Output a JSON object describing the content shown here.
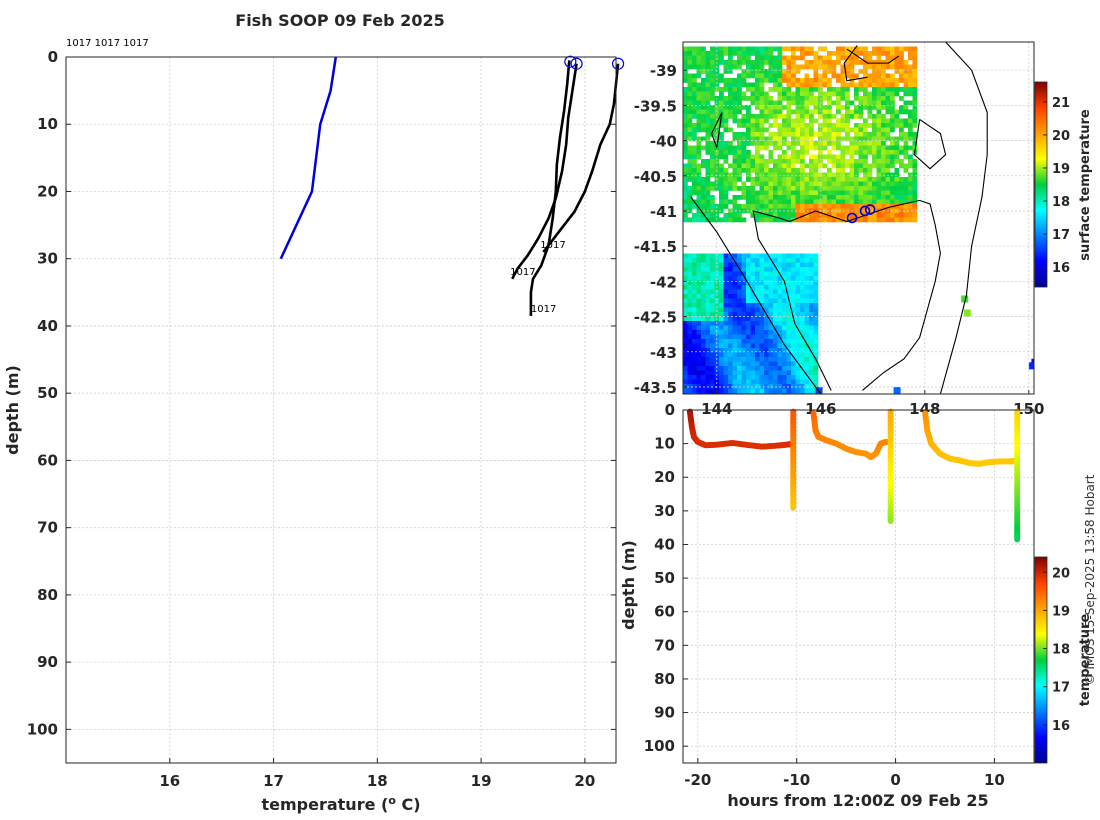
{
  "credit": "© IMOS 15-Sep-2025 13:58 Hobart",
  "chart_data": [
    {
      "type": "line",
      "name": "profile",
      "title": "Fish SOOP 09 Feb 2025",
      "xlabel": "temperature (° C)",
      "ylabel": "depth (m)",
      "xlim": [
        15,
        20.3
      ],
      "ylim": [
        0,
        105
      ],
      "xticks": [
        16,
        17,
        18,
        19,
        20
      ],
      "yticks": [
        0,
        10,
        20,
        30,
        40,
        50,
        60,
        70,
        80,
        90,
        100
      ],
      "top_labels": "1017 1017 1017",
      "climatology": {
        "color": "#0000dd",
        "x": [
          17.6,
          17.55,
          17.45,
          17.37,
          17.07
        ],
        "y": [
          0,
          5,
          10,
          20,
          30
        ]
      },
      "profiles": [
        {
          "label": "1017",
          "x": [
            19.85,
            19.83,
            19.8,
            19.76,
            19.73,
            19.72,
            19.69,
            19.65,
            19.58,
            19.5,
            19.48,
            19.48
          ],
          "y": [
            0.5,
            4,
            8,
            12,
            16,
            20,
            24,
            28,
            31,
            33,
            35,
            38.5
          ],
          "label_pos": [
            19.48,
            38.5
          ]
        },
        {
          "label": "1017",
          "x": [
            19.92,
            19.88,
            19.84,
            19.82,
            19.78,
            19.72,
            19.65,
            19.55,
            19.45,
            19.35,
            19.3
          ],
          "y": [
            1,
            5,
            9,
            13,
            17,
            21,
            24,
            27,
            29.5,
            31.5,
            33
          ],
          "label_pos": [
            19.28,
            33
          ]
        },
        {
          "label": "1017",
          "x": [
            20.32,
            20.3,
            20.28,
            20.24,
            20.15,
            20.07,
            20.0,
            19.9,
            19.8,
            19.7,
            19.6
          ],
          "y": [
            1,
            4,
            7,
            10,
            13,
            17,
            20,
            23,
            25,
            27,
            29
          ],
          "label_pos": [
            19.57,
            29
          ]
        }
      ],
      "markers": [
        {
          "x": 19.86,
          "y": 0.7
        },
        {
          "x": 19.92,
          "y": 1.0
        },
        {
          "x": 20.32,
          "y": 1.0
        }
      ]
    },
    {
      "type": "heatmap",
      "name": "map",
      "colorbar_label": "surface temperature",
      "colorbar_ticks": [
        16,
        17,
        18,
        19,
        20,
        21
      ],
      "colorbar_range": [
        15.4,
        21.6
      ],
      "x_ticks": [
        144,
        146,
        148,
        150
      ],
      "y_ticks": [
        -39,
        -39.5,
        -40,
        -40.5,
        -41,
        -41.5,
        -42,
        -42.5,
        -43,
        -43.5
      ],
      "lon_range": [
        143.35,
        150.1
      ],
      "lat_range": [
        -43.6,
        -38.6
      ],
      "stations": [
        {
          "lon": 146.6,
          "lat": -41.1
        },
        {
          "lon": 146.85,
          "lat": -41.0
        },
        {
          "lon": 146.95,
          "lat": -40.98
        }
      ]
    },
    {
      "type": "scatter",
      "name": "timeseries",
      "xlabel": "hours from 12:00Z 09 Feb 25",
      "ylabel": "depth (m)",
      "xlim": [
        -21.5,
        14
      ],
      "ylim": [
        0,
        105
      ],
      "xticks": [
        -20,
        -10,
        0,
        10
      ],
      "yticks": [
        0,
        10,
        20,
        30,
        40,
        50,
        60,
        70,
        80,
        90,
        100
      ],
      "colorbar_label": "temperature",
      "colorbar_ticks": [
        16,
        17,
        18,
        19,
        20
      ],
      "colorbar_range": [
        15.0,
        20.4
      ],
      "segments": [
        {
          "t": [
            -20.8,
            -20.6,
            -20.4,
            -20,
            -19.2,
            -18,
            -16.5,
            -15,
            -13.5,
            -12,
            -11,
            -10.5
          ],
          "d": [
            0.5,
            5,
            8,
            9.5,
            10.5,
            10.3,
            9.8,
            10.4,
            10.9,
            10.6,
            10.3,
            10.1
          ],
          "temp": 20.2
        },
        {
          "t": [
            -10.35,
            -10.35,
            -10.35,
            -10.35,
            -10.35,
            -10.35
          ],
          "d": [
            0.5,
            6,
            12,
            18,
            24,
            29
          ],
          "temp": 19.6
        },
        {
          "t": [
            -8.3,
            -8.1,
            -7.8,
            -7,
            -6,
            -5,
            -4,
            -3,
            -2.5,
            -2,
            -1.5,
            -1,
            -0.8
          ],
          "d": [
            1,
            6,
            8,
            9,
            10,
            11.5,
            12.5,
            13,
            14,
            13,
            10,
            9.5,
            9.5
          ],
          "temp": 19.5
        },
        {
          "t": [
            -0.5,
            -0.5,
            -0.5,
            -0.5,
            -0.5,
            -0.5,
            -0.5
          ],
          "d": [
            0.5,
            6,
            12,
            18,
            24,
            30,
            33
          ],
          "temp": 19.0
        },
        {
          "t": [
            3.0,
            3.2,
            3.6,
            4.5,
            5.5,
            6.5,
            7.5,
            8.5,
            9.5,
            10.5,
            11.5,
            12.0
          ],
          "d": [
            1,
            6,
            10,
            13,
            14.5,
            15,
            15.8,
            16,
            15.5,
            15.3,
            15.3,
            15.2
          ],
          "temp": 19.2
        },
        {
          "t": [
            12.3,
            12.3,
            12.3,
            12.3,
            12.3,
            12.3,
            12.3
          ],
          "d": [
            0.5,
            7,
            14,
            20,
            27,
            34,
            38.5
          ],
          "temp": 18.7
        }
      ]
    }
  ]
}
